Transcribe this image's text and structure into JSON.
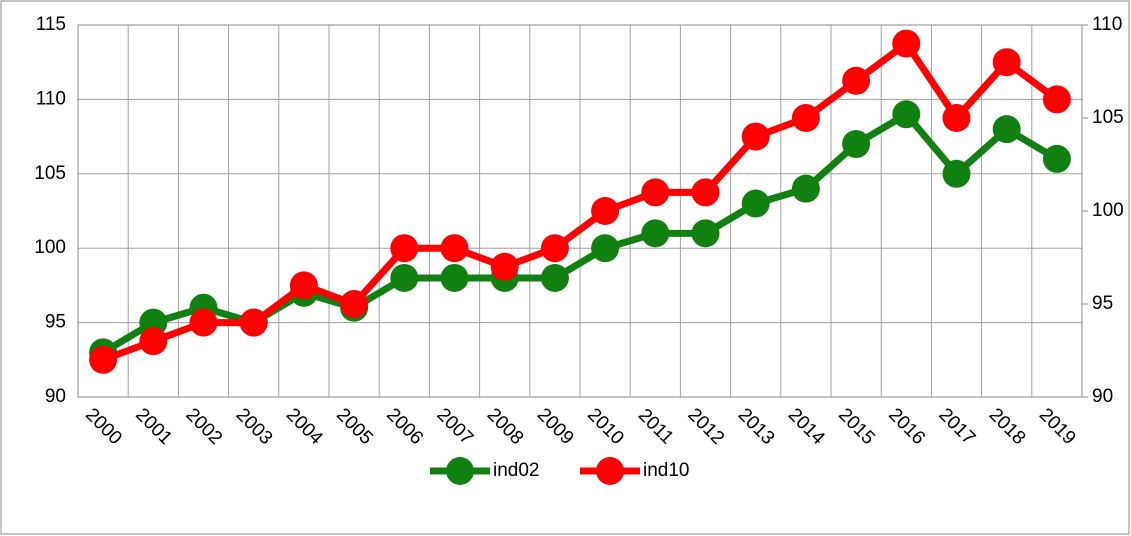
{
  "chart_data": {
    "type": "line",
    "categories": [
      "2000",
      "2001",
      "2002",
      "2003",
      "2004",
      "2005",
      "2006",
      "2007",
      "2008",
      "2009",
      "2010",
      "2011",
      "2012",
      "2013",
      "2014",
      "2015",
      "2016",
      "2017",
      "2018",
      "2019"
    ],
    "series": [
      {
        "name": "ind02",
        "color": "#108010",
        "values": [
          93,
          95,
          96,
          95,
          97,
          96,
          98,
          98,
          98,
          98,
          100,
          101,
          101,
          103,
          104,
          107,
          109,
          105,
          108,
          106
        ]
      },
      {
        "name": "ind10",
        "color": "#ff0000",
        "axis": "y2",
        "values": [
          92,
          93,
          94,
          94,
          96,
          95,
          98,
          98,
          97,
          98,
          100,
          101,
          101,
          104,
          105,
          107,
          109,
          105,
          108,
          106
        ]
      }
    ],
    "ylim": [
      90,
      115
    ],
    "yticks": [
      90,
      95,
      100,
      105,
      110,
      115
    ],
    "y2lim": [
      90,
      110
    ],
    "y2ticks": [
      90,
      95,
      100,
      105,
      110
    ],
    "grid": true,
    "legend": "bottom"
  }
}
